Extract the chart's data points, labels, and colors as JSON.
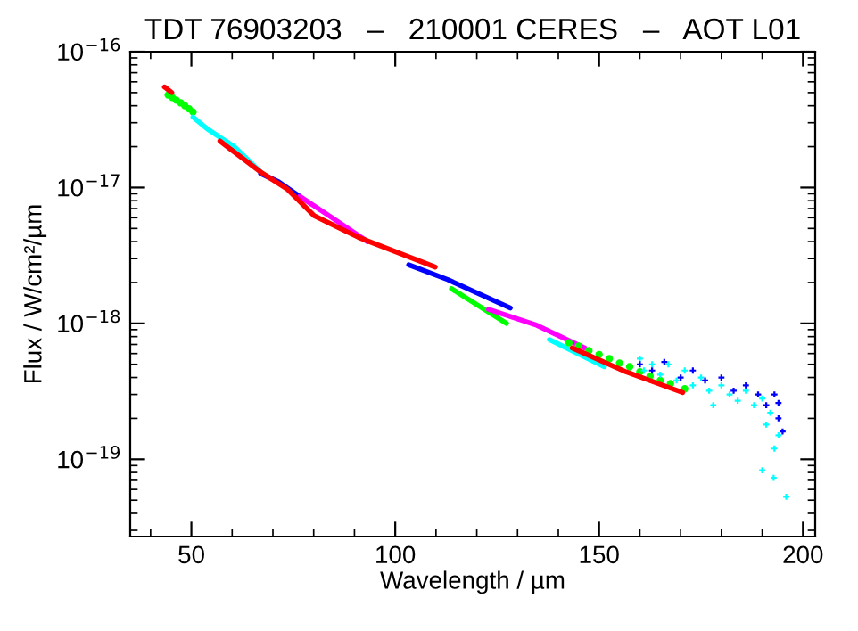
{
  "chart_data": {
    "type": "line",
    "title": "TDT 76903203   –   210001 CERES   –   AOT L01",
    "xlabel": "Wavelength / µm",
    "ylabel": "Flux / W/cm²/µm",
    "log": "y",
    "grid": false,
    "xlim": [
      35,
      203
    ],
    "xticks": [
      50,
      100,
      150,
      200
    ],
    "ylim": [
      2.7e-20,
      1e-16
    ],
    "yticks": [
      {
        "value": 1e-16,
        "label": "10$^{−16}$"
      },
      {
        "value": 1e-17,
        "label": "10$^{−17}$"
      },
      {
        "value": 1e-18,
        "label": "10$^{−18}$"
      },
      {
        "value": 1e-19,
        "label": "10$^{−19}$"
      }
    ],
    "series": [
      {
        "type": "scatter",
        "marker": "circle",
        "color": "#00ff00",
        "x": [
          44.3,
          45.3,
          46.3,
          47.4,
          48.4,
          49.4,
          50.4
        ],
        "values": [
          4.8e-17,
          4.6e-17,
          4.4e-17,
          4.2e-17,
          4e-17,
          3.8e-17,
          3.6e-17
        ]
      },
      {
        "color": "#ff0000",
        "x": [
          43.4,
          45.2
        ],
        "values": [
          5.5e-17,
          5e-17
        ]
      },
      {
        "color": "#00ffff",
        "x": [
          50.4,
          53.9,
          60.5,
          67.0
        ],
        "values": [
          3.3e-17,
          2.7e-17,
          2e-17,
          1.3e-17
        ]
      },
      {
        "color": "#0000ff",
        "x": [
          67.0,
          71.4,
          76.6
        ],
        "values": [
          1.27e-17,
          1.1e-17,
          8.6e-18
        ]
      },
      {
        "color": "#ff00ff",
        "x": [
          76.6,
          84.5,
          93.2
        ],
        "values": [
          8.6e-18,
          6e-18,
          4e-18
        ]
      },
      {
        "color": "#ff0000",
        "x": [
          57.0,
          67.0,
          73.6,
          80.1,
          91.0,
          109.8
        ],
        "values": [
          2.2e-17,
          1.3e-17,
          9.7e-18,
          6.2e-18,
          4.3e-18,
          2.6e-18
        ]
      },
      {
        "color": "#00ff00",
        "x": [
          113.8,
          127.3
        ],
        "values": [
          1.8e-18,
          1e-18
        ]
      },
      {
        "color": "#0000ff",
        "x": [
          103.3,
          112.9,
          128.2
        ],
        "values": [
          2.7e-18,
          2.1e-18,
          1.3e-18
        ]
      },
      {
        "color": "#ff00ff",
        "x": [
          122.9,
          134.7,
          146.5
        ],
        "values": [
          1.27e-18,
          9.7e-19,
          6.6e-19
        ]
      },
      {
        "color": "#00ffff",
        "x": [
          137.8,
          151.3
        ],
        "values": [
          7.6e-19,
          4.8e-19
        ]
      },
      {
        "type": "scatter",
        "marker": "circle",
        "color": "#00ff00",
        "x": [
          142.6,
          145,
          147.5,
          150,
          152.5,
          155,
          157.5,
          160,
          162.5,
          165,
          167.5,
          171.0
        ],
        "values": [
          7.2e-19,
          6.8e-19,
          6.3e-19,
          5.9e-19,
          5.5e-19,
          5.1e-19,
          4.8e-19,
          4.4e-19,
          4.1e-19,
          3.8e-19,
          3.6e-19,
          3.3e-19
        ]
      },
      {
        "color": "#ff0000",
        "x": [
          143.4,
          156.6,
          170.5
        ],
        "values": [
          6.6e-19,
          4.4e-19,
          3.1e-19
        ]
      },
      {
        "type": "scatter",
        "marker": "cross",
        "color": "#00ffff",
        "x": [
          160,
          161,
          163,
          165,
          167,
          169,
          171,
          173,
          175,
          177,
          178,
          180,
          182,
          184,
          186,
          188,
          190,
          191,
          192,
          193,
          194,
          190,
          192.8,
          195.9
        ],
        "values": [
          5.5e-19,
          4.5e-19,
          5e-19,
          4.2e-19,
          5e-19,
          3.8e-19,
          4.5e-19,
          3.5e-19,
          4e-19,
          3.2e-19,
          2.5e-19,
          3.5e-19,
          3e-19,
          2.7e-19,
          3.2e-19,
          2.5e-19,
          2.8e-19,
          1.8e-19,
          2.2e-19,
          1.2e-19,
          1.5e-19,
          8.3e-20,
          7.3e-20,
          5.3e-20
        ]
      },
      {
        "type": "scatter",
        "marker": "cross",
        "color": "#0000ff",
        "x": [
          160,
          163,
          166,
          170,
          173,
          176,
          180,
          183,
          186,
          189,
          191,
          193,
          194,
          195,
          194
        ],
        "values": [
          5e-19,
          4.5e-19,
          5.2e-19,
          4e-19,
          4.5e-19,
          3.8e-19,
          4e-19,
          3.2e-19,
          3.5e-19,
          3e-19,
          2.5e-19,
          3e-19,
          2e-19,
          1.6e-19,
          2.6e-19
        ]
      }
    ]
  }
}
